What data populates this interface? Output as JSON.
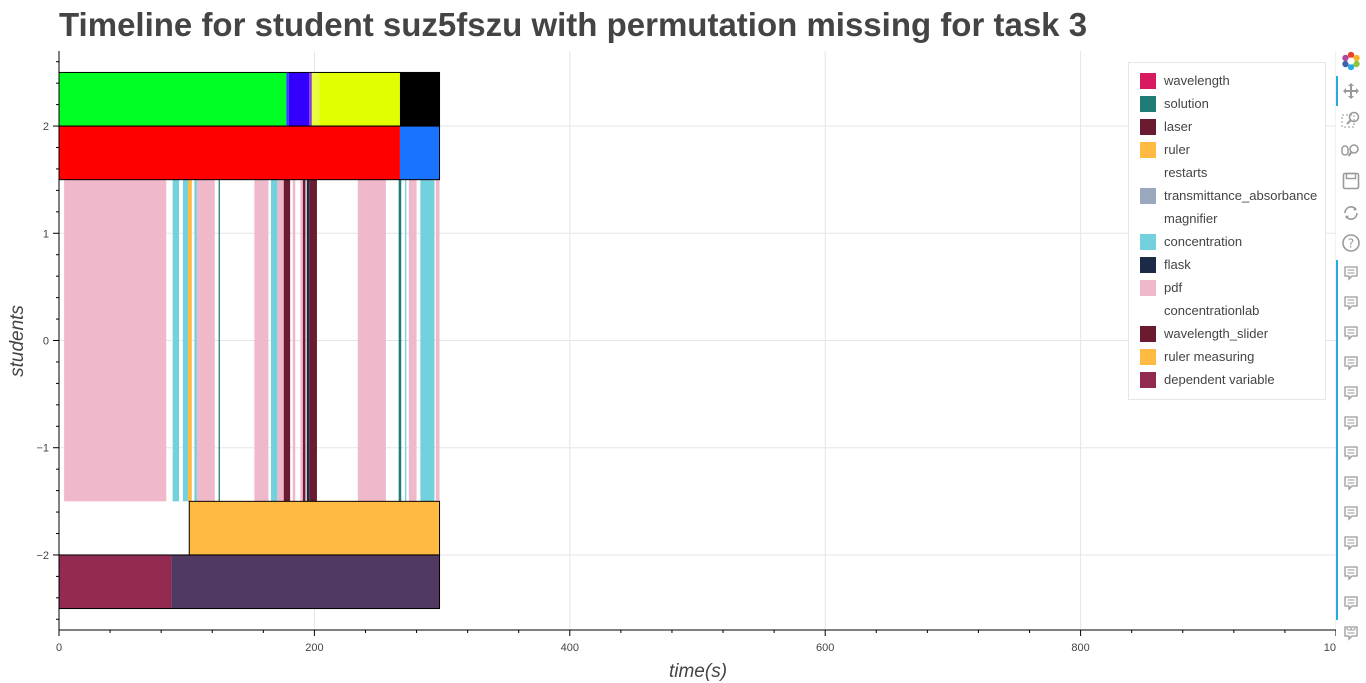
{
  "chart_data": {
    "type": "bar",
    "orientation": "horizontal-timeline",
    "title": "Timeline for student suz5fszu with permutation missing for task 3",
    "xlabel": "time(s)",
    "ylabel": "students",
    "xlim": [
      0,
      1000
    ],
    "ylim": [
      -2.7,
      2.7
    ],
    "xticks": [
      0,
      200,
      400,
      600,
      800,
      1000
    ],
    "xtick_labels": [
      "0",
      "200",
      "400",
      "600",
      "800",
      "1000"
    ],
    "yticks": [
      -2,
      -1,
      0,
      1,
      2
    ],
    "ytick_labels": [
      "−2",
      "−1",
      "0",
      "1",
      "2"
    ],
    "grid": true,
    "legend_position": "top-right",
    "legend": [
      {
        "name": "wavelength",
        "color": "#d81b60"
      },
      {
        "name": "solution",
        "color": "#1e7b76"
      },
      {
        "name": "laser",
        "color": "#6a1b2f"
      },
      {
        "name": "ruler",
        "color": "#ffba43"
      },
      {
        "name": "restarts",
        "color": "#ffffff"
      },
      {
        "name": "transmittance_absorbance",
        "color": "#9aa9bd"
      },
      {
        "name": "magnifier",
        "color": "#ffffff"
      },
      {
        "name": "concentration",
        "color": "#72d1dd"
      },
      {
        "name": "flask",
        "color": "#1c2b45"
      },
      {
        "name": "pdf",
        "color": "#efb9cb"
      },
      {
        "name": "concentrationlab",
        "color": "#ffffff"
      },
      {
        "name": "wavelength_slider",
        "color": "#6a1b2f"
      },
      {
        "name": "ruler measuring",
        "color": "#ffba43"
      },
      {
        "name": "dependent variable",
        "color": "#922a52"
      }
    ],
    "rows": [
      {
        "y": 2.25,
        "height": 0.5,
        "segments": [
          {
            "start": 0,
            "end": 178,
            "color": "#00ff24"
          },
          {
            "start": 178,
            "end": 180,
            "color": "#2f3cff"
          },
          {
            "start": 180,
            "end": 196,
            "color": "#3300ff"
          },
          {
            "start": 196,
            "end": 198,
            "color": "#8a3fd0"
          },
          {
            "start": 198,
            "end": 204,
            "color": "#e8ff40"
          },
          {
            "start": 204,
            "end": 267,
            "color": "#e1ff00"
          },
          {
            "start": 267,
            "end": 298,
            "color": "#000000"
          }
        ]
      },
      {
        "y": 1.75,
        "height": 0.5,
        "segments": [
          {
            "start": 0,
            "end": 267,
            "color": "#ff0000"
          },
          {
            "start": 267,
            "end": 298,
            "color": "#1a73ff"
          }
        ]
      },
      {
        "y": 0.0,
        "height": 3.0,
        "segments": [
          {
            "start": 4,
            "end": 84,
            "color": "#efb9cb"
          },
          {
            "start": 89,
            "end": 94,
            "color": "#72d1dd"
          },
          {
            "start": 97,
            "end": 101,
            "color": "#72d1dd"
          },
          {
            "start": 101,
            "end": 104,
            "color": "#ffba43"
          },
          {
            "start": 106,
            "end": 108,
            "color": "#72d1dd"
          },
          {
            "start": 108,
            "end": 122,
            "color": "#efb9cb"
          },
          {
            "start": 125,
            "end": 126,
            "color": "#1e7b76"
          },
          {
            "start": 153,
            "end": 164,
            "color": "#efb9cb"
          },
          {
            "start": 166,
            "end": 171,
            "color": "#72d1dd"
          },
          {
            "start": 171,
            "end": 176,
            "color": "#efb9cb"
          },
          {
            "start": 176,
            "end": 181,
            "color": "#6a1b2f"
          },
          {
            "start": 183,
            "end": 185,
            "color": "#efb9cb"
          },
          {
            "start": 189,
            "end": 191,
            "color": "#efb9cb"
          },
          {
            "start": 191,
            "end": 193,
            "color": "#6a1b2f"
          },
          {
            "start": 194,
            "end": 196,
            "color": "#1c2b45"
          },
          {
            "start": 196,
            "end": 202,
            "color": "#6a1b2f"
          },
          {
            "start": 234,
            "end": 256,
            "color": "#efb9cb"
          },
          {
            "start": 266,
            "end": 268,
            "color": "#1e7b76"
          },
          {
            "start": 271,
            "end": 272,
            "color": "#72d1dd"
          },
          {
            "start": 274,
            "end": 280,
            "color": "#efb9cb"
          },
          {
            "start": 283,
            "end": 294,
            "color": "#72d1dd"
          },
          {
            "start": 295,
            "end": 298,
            "color": "#efb9cb"
          }
        ]
      },
      {
        "y": -1.75,
        "height": 0.5,
        "segments": [
          {
            "start": 102,
            "end": 298,
            "color": "#ffba43"
          }
        ]
      },
      {
        "y": -2.25,
        "height": 0.5,
        "segments": [
          {
            "start": 0,
            "end": 88,
            "color": "#922a52"
          },
          {
            "start": 88,
            "end": 298,
            "color": "#513a62"
          }
        ]
      }
    ]
  },
  "toolbar": {
    "logo_icon": "bokeh-logo-icon",
    "tools": [
      "pan-icon",
      "box-zoom-icon",
      "wheel-zoom-icon",
      "save-icon",
      "reset-icon",
      "help-icon"
    ],
    "hover_tools_count": 13,
    "more_label": "···"
  }
}
